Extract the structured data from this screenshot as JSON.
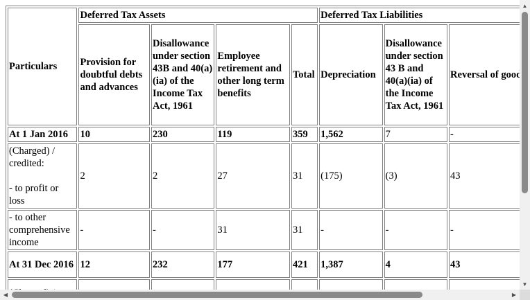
{
  "table": {
    "group_headers": {
      "particulars": "Particulars",
      "assets": "Deferred Tax Assets",
      "liabilities": "Deferred Tax Liabilities"
    },
    "columns": {
      "provision": "Provision for doubtful debts and advances",
      "disallowance_assets": "Disallowance under section 43B and 40(a)(ia) of the Income Tax Act, 1961",
      "employee": "Employee retirement and other long term benefits",
      "total": "Total",
      "depreciation": "Depreciation",
      "disallowance_liab": "Disallowance under section 43 B and 40(a)(ia) of the Income Tax Act, 1961",
      "goodwill": "Reversal of goodwill amortisation"
    },
    "rows": [
      {
        "label": "At 1 Jan 2016",
        "provision": "10",
        "disallowance_assets": "230",
        "employee": "119",
        "total": "359",
        "depreciation": "1,562",
        "disallowance_liab": "7",
        "goodwill": "-"
      },
      {
        "label_line1": "(Charged) / credited:",
        "label_line2": "- to profit or loss",
        "provision": "2",
        "disallowance_assets": "2",
        "employee": "27",
        "total": "31",
        "depreciation": "(175)",
        "disallowance_liab": "(3)",
        "goodwill": "43"
      },
      {
        "label": "- to other comprehensive income",
        "provision": "-",
        "disallowance_assets": "-",
        "employee": "31",
        "total": "31",
        "depreciation": "-",
        "disallowance_liab": "-",
        "goodwill": "-"
      },
      {
        "label": "At 31 Dec 2016",
        "provision": "12",
        "disallowance_assets": "232",
        "employee": "177",
        "total": "421",
        "depreciation": "1,387",
        "disallowance_liab": "4",
        "goodwill": "43"
      },
      {
        "label": "(Charged) /"
      }
    ]
  },
  "scrollbars": {
    "up_arrow_icon": "triangle-up",
    "down_arrow_icon": "triangle-down",
    "left_arrow_icon": "triangle-left",
    "right_arrow_icon": "triangle-right"
  }
}
